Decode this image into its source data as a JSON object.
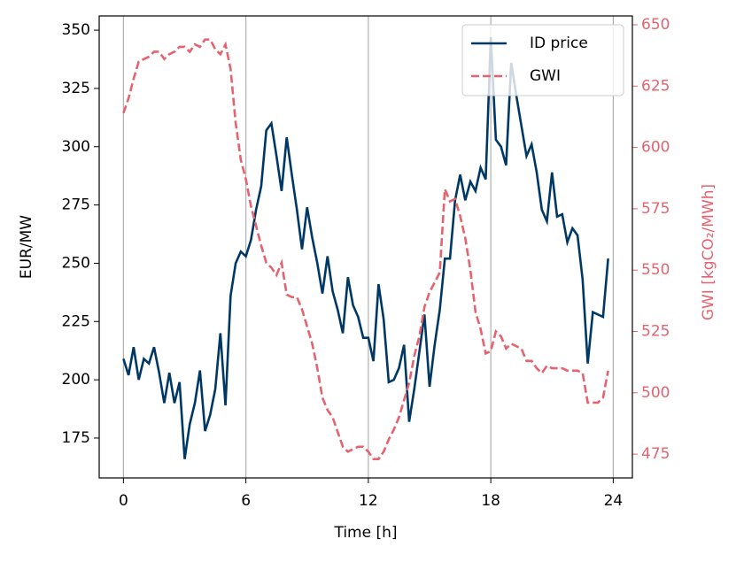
{
  "chart_data": {
    "type": "line",
    "xlabel": "Time [h]",
    "ylabel": "EUR/MW",
    "y2label": "GWI [kgCO₂/MWh]",
    "x": [
      0,
      0.25,
      0.5,
      0.75,
      1,
      1.25,
      1.5,
      1.75,
      2,
      2.25,
      2.5,
      2.75,
      3,
      3.25,
      3.5,
      3.75,
      4,
      4.25,
      4.5,
      4.75,
      5,
      5.25,
      5.5,
      5.75,
      6,
      6.25,
      6.5,
      6.75,
      7,
      7.25,
      7.5,
      7.75,
      8,
      8.25,
      8.5,
      8.75,
      9,
      9.25,
      9.5,
      9.75,
      10,
      10.25,
      10.5,
      10.75,
      11,
      11.25,
      11.5,
      11.75,
      12,
      12.25,
      12.5,
      12.75,
      13,
      13.25,
      13.5,
      13.75,
      14,
      14.25,
      14.5,
      14.75,
      15,
      15.25,
      15.5,
      15.75,
      16,
      16.25,
      16.5,
      16.75,
      17,
      17.25,
      17.5,
      17.75,
      18,
      18.25,
      18.5,
      18.75,
      19,
      19.25,
      19.5,
      19.75,
      20,
      20.25,
      20.5,
      20.75,
      21,
      21.25,
      21.5,
      21.75,
      22,
      22.25,
      22.5,
      22.75,
      23,
      23.25,
      23.5,
      23.75
    ],
    "series": [
      {
        "name": "ID price",
        "color": "#003865",
        "dash": false,
        "axis": "y",
        "values": [
          209,
          202,
          214,
          200,
          209,
          207,
          214,
          203,
          190,
          203,
          190,
          199,
          166,
          181,
          190,
          204,
          178,
          185,
          196,
          220,
          189,
          236,
          250,
          255,
          253,
          260,
          273,
          283,
          307,
          310,
          296,
          281,
          304,
          288,
          273,
          256,
          274,
          261,
          250,
          237,
          253,
          238,
          230,
          220,
          244,
          232,
          227,
          218,
          218,
          208,
          241,
          226,
          199,
          200,
          205,
          215,
          182,
          196,
          212,
          228,
          197,
          215,
          230,
          252,
          252,
          277,
          288,
          277,
          285,
          281,
          291,
          286,
          347,
          303,
          300,
          292,
          336,
          322,
          309,
          296,
          301,
          289,
          273,
          268,
          289,
          270,
          271,
          259,
          265,
          262,
          243,
          207,
          229,
          228,
          227,
          252
        ]
      },
      {
        "name": "GWI",
        "color": "#e5636f",
        "dash": true,
        "axis": "y2",
        "values": [
          614,
          620,
          628,
          635,
          636,
          637,
          639,
          639,
          636,
          638,
          639,
          641,
          641,
          639,
          642,
          641,
          644,
          644,
          640,
          638,
          642,
          632,
          610,
          595,
          587,
          576,
          568,
          560,
          553,
          551,
          548,
          553,
          540,
          539,
          539,
          534,
          527,
          520,
          510,
          498,
          493,
          490,
          484,
          478,
          476,
          477,
          478,
          478,
          476,
          473,
          473,
          476,
          481,
          485,
          490,
          497,
          504,
          515,
          523,
          535,
          541,
          545,
          549,
          583,
          578,
          579,
          572,
          563,
          550,
          533,
          526,
          516,
          517,
          525,
          523,
          518,
          520,
          519,
          518,
          513,
          513,
          510,
          508,
          511,
          510,
          510,
          510,
          509,
          509,
          509,
          508,
          496,
          496,
          496,
          498,
          509
        ]
      }
    ],
    "xlim": [
      -1.1875,
      24.9375
    ],
    "xticks": [
      0,
      6,
      12,
      18,
      24
    ],
    "ylim": [
      157.9,
      356.1
    ],
    "yticks": [
      175,
      200,
      225,
      250,
      275,
      300,
      325,
      350
    ],
    "y2lim": [
      465.3,
      653.6
    ],
    "y2ticks": [
      475,
      500,
      525,
      550,
      575,
      600,
      625,
      650
    ],
    "xgrid": true,
    "legend": "upper right"
  }
}
